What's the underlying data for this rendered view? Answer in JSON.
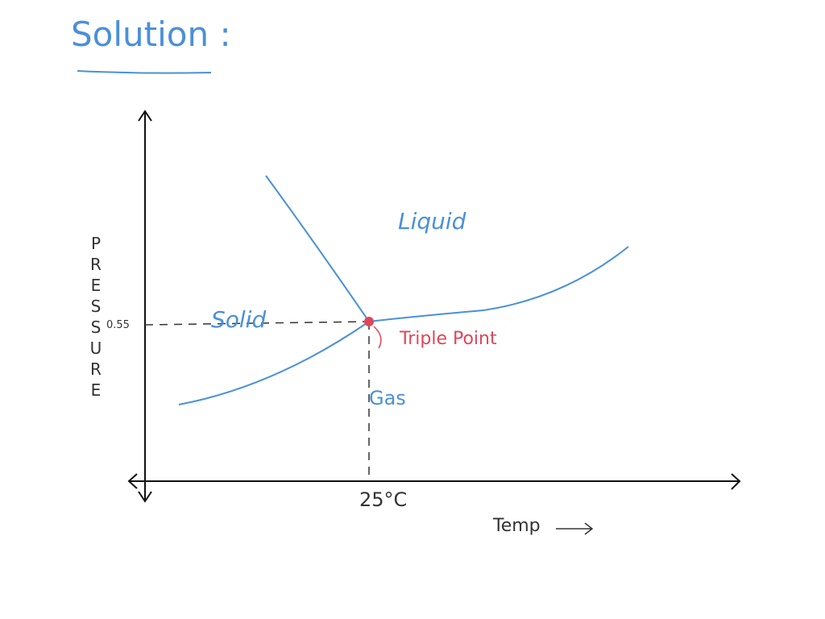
{
  "header": {
    "title": "Solution :"
  },
  "axes": {
    "y_label": "PRESSURE",
    "x_label": "Temp",
    "y_marker": "0.55",
    "x_marker": "25°C"
  },
  "regions": {
    "liquid": "Liquid",
    "solid": "Solid",
    "gas": "Gas"
  },
  "point": {
    "label": "Triple Point"
  }
}
